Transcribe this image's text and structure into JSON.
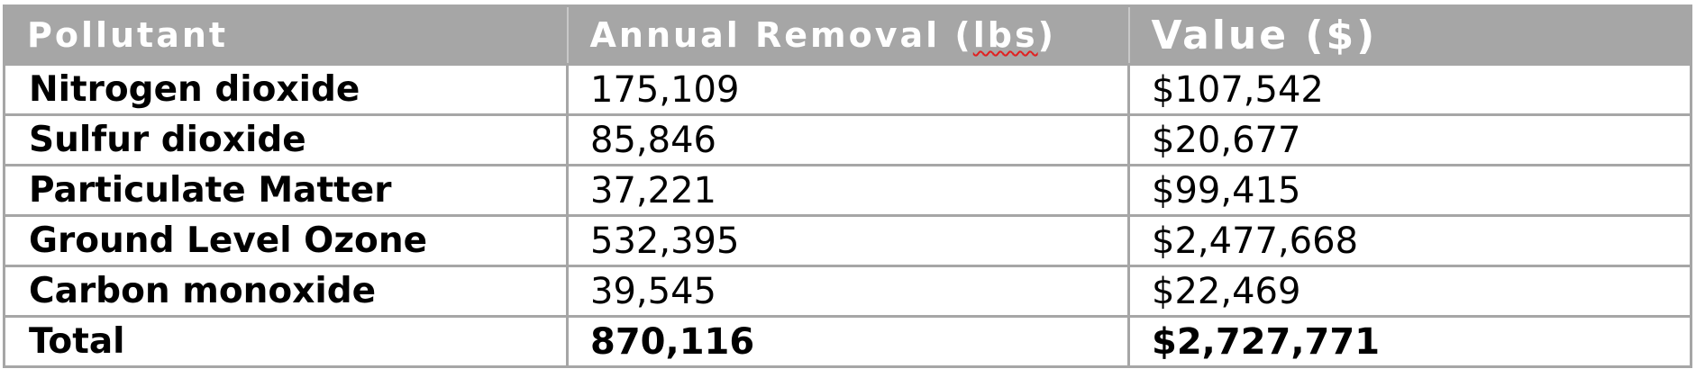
{
  "table": {
    "headers": {
      "pollutant": "Pollutant",
      "removal_prefix": "Annual Removal (",
      "removal_unit": "lbs",
      "removal_suffix": ")",
      "value": "Value ($)"
    },
    "rows": [
      {
        "pollutant": "Nitrogen dioxide",
        "removal": "175,109",
        "value": "$107,542"
      },
      {
        "pollutant": "Sulfur dioxide",
        "removal": "85,846",
        "value": "$20,677"
      },
      {
        "pollutant": "Particulate Matter",
        "removal": "37,221",
        "value": "$99,415"
      },
      {
        "pollutant": "Ground Level Ozone",
        "removal": "532,395",
        "value": "$2,477,668"
      },
      {
        "pollutant": "Carbon monoxide",
        "removal": "39,545",
        "value": "$22,469"
      }
    ],
    "total": {
      "label": "Total",
      "removal": "870,116",
      "value": "$2,727,771"
    }
  },
  "colors": {
    "header_bg": "#a6a6a6",
    "header_text": "#ffffff",
    "border": "#a6a6a6",
    "spellcheck_underline": "#e02020"
  }
}
